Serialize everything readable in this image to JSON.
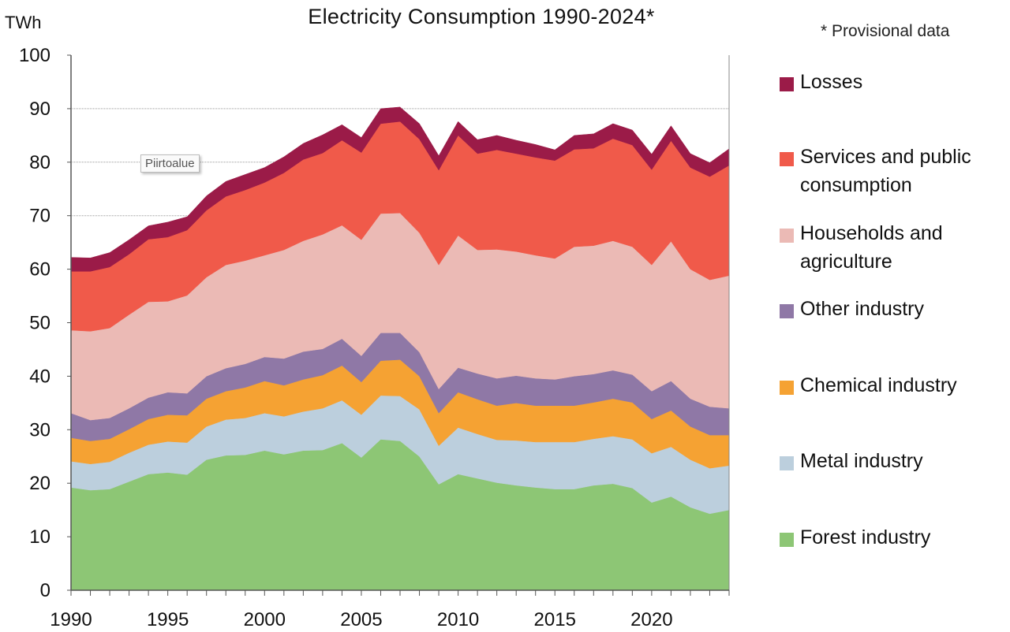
{
  "chart_data": {
    "type": "area",
    "stacked": true,
    "title": "Electricity Consumption 1990-2024*",
    "ylabel": "TWh",
    "note": "* Provisional data",
    "ylim": [
      0,
      100
    ],
    "yticks": [
      0,
      10,
      20,
      30,
      40,
      50,
      60,
      70,
      80,
      90,
      100
    ],
    "xlim": [
      1990,
      2024
    ],
    "xtick_labels": [
      1990,
      1995,
      2000,
      2005,
      2010,
      2015,
      2020
    ],
    "grid": "horizontal dotted",
    "legend_position": "right",
    "x": [
      1990,
      1991,
      1992,
      1993,
      1994,
      1995,
      1996,
      1997,
      1998,
      1999,
      2000,
      2001,
      2002,
      2003,
      2004,
      2005,
      2006,
      2007,
      2008,
      2009,
      2010,
      2011,
      2012,
      2013,
      2014,
      2015,
      2016,
      2017,
      2018,
      2019,
      2020,
      2021,
      2022,
      2023,
      2024
    ],
    "series": [
      {
        "name": "Forest industry",
        "color": "#8dc675",
        "values": [
          19.2,
          18.7,
          18.9,
          20.3,
          21.7,
          22.0,
          21.6,
          24.4,
          25.2,
          25.3,
          26.1,
          25.4,
          26.1,
          26.2,
          27.5,
          24.8,
          28.2,
          27.9,
          25.0,
          19.8,
          21.7,
          20.9,
          20.1,
          19.6,
          19.2,
          18.9,
          18.9,
          19.6,
          19.9,
          19.1,
          16.4,
          17.5,
          15.5,
          14.3,
          15.0
        ]
      },
      {
        "name": "Metal industry",
        "color": "#bccfdd",
        "values": [
          4.9,
          4.9,
          5.1,
          5.4,
          5.5,
          5.8,
          6.0,
          6.2,
          6.7,
          6.9,
          7.0,
          7.1,
          7.3,
          7.8,
          8.0,
          8.0,
          8.2,
          8.4,
          8.8,
          7.2,
          8.7,
          8.3,
          8.0,
          8.4,
          8.5,
          8.8,
          8.8,
          8.7,
          8.9,
          9.1,
          9.2,
          9.3,
          8.9,
          8.5,
          8.3
        ]
      },
      {
        "name": "Chemical industry",
        "color": "#f5a233",
        "values": [
          4.4,
          4.3,
          4.3,
          4.4,
          4.8,
          5.0,
          5.1,
          5.2,
          5.3,
          5.7,
          6.0,
          5.8,
          6.0,
          6.2,
          6.5,
          6.1,
          6.5,
          6.8,
          6.2,
          6.1,
          6.6,
          6.5,
          6.4,
          7.0,
          6.8,
          6.8,
          6.8,
          6.8,
          7.0,
          6.9,
          6.4,
          6.8,
          6.2,
          6.2,
          5.7
        ]
      },
      {
        "name": "Other industry",
        "color": "#8f78a6",
        "values": [
          4.6,
          3.9,
          3.9,
          3.9,
          4.0,
          4.2,
          4.1,
          4.2,
          4.3,
          4.4,
          4.5,
          5.0,
          5.2,
          4.9,
          5.0,
          4.9,
          5.2,
          5.0,
          4.5,
          4.5,
          4.6,
          4.8,
          5.1,
          5.1,
          5.1,
          4.9,
          5.5,
          5.3,
          5.3,
          5.2,
          5.2,
          5.5,
          5.2,
          5.3,
          5.0
        ]
      },
      {
        "name": "Households and agriculture",
        "color": "#ebbab5",
        "values": [
          15.5,
          16.6,
          16.8,
          17.5,
          17.9,
          17.0,
          18.3,
          18.5,
          19.3,
          19.3,
          19.0,
          20.3,
          20.7,
          21.4,
          21.2,
          21.7,
          22.3,
          22.4,
          22.3,
          23.2,
          24.7,
          23.1,
          24.1,
          23.2,
          23.0,
          22.6,
          24.2,
          24.0,
          24.2,
          23.9,
          23.6,
          26.1,
          24.2,
          23.7,
          24.8
        ]
      },
      {
        "name": "Services and public consumption",
        "color": "#f05a4a",
        "values": [
          11.0,
          11.2,
          11.4,
          11.3,
          11.7,
          12.0,
          12.2,
          12.5,
          12.8,
          13.2,
          13.6,
          14.4,
          15.2,
          15.2,
          15.9,
          16.3,
          16.8,
          17.1,
          17.5,
          17.7,
          18.7,
          18.0,
          18.6,
          18.3,
          18.3,
          18.3,
          18.2,
          18.2,
          19.1,
          19.0,
          17.8,
          18.8,
          19.0,
          19.3,
          20.6
        ]
      },
      {
        "name": "Losses",
        "color": "#9b1b48",
        "values": [
          2.6,
          2.5,
          2.7,
          2.7,
          2.5,
          2.8,
          2.5,
          2.7,
          2.8,
          2.9,
          2.8,
          3.0,
          3.0,
          3.4,
          2.9,
          2.8,
          2.8,
          2.7,
          2.9,
          2.7,
          2.6,
          2.6,
          2.7,
          2.5,
          2.4,
          2.0,
          2.6,
          2.7,
          2.8,
          2.8,
          2.9,
          2.8,
          2.6,
          2.6,
          3.1
        ]
      }
    ]
  },
  "tooltip": "Piirtoalue"
}
